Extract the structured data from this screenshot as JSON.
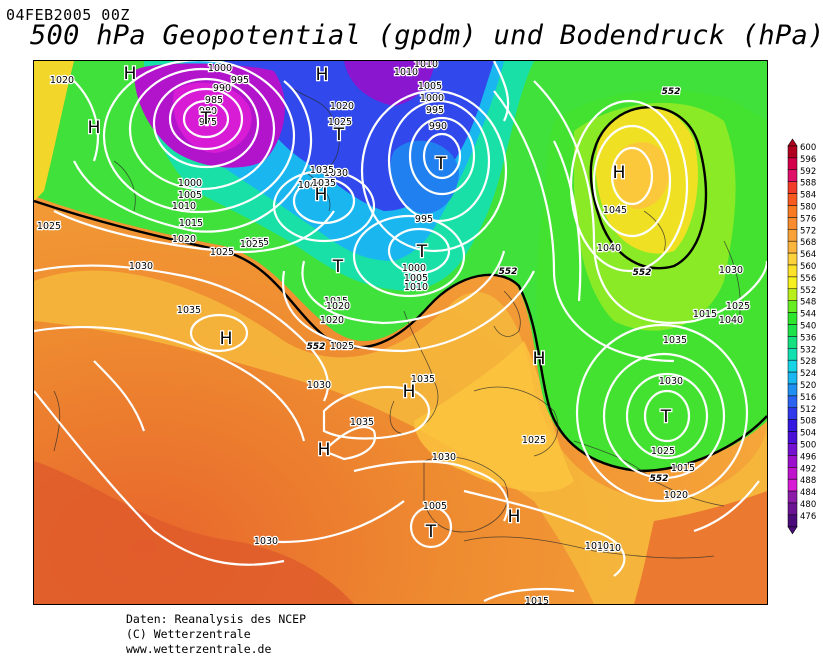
{
  "header": {
    "date": "04FEB2005 00Z",
    "title": "500 hPa Geopotential (gpdm) und Bodendruck (hPa)"
  },
  "credits": {
    "line1": "Daten: Reanalysis des NCEP",
    "line2": "(C) Wetterzentrale",
    "line3": "www.wetterzentrale.de"
  },
  "legend": {
    "values": [
      "600",
      "596",
      "592",
      "588",
      "584",
      "580",
      "576",
      "572",
      "568",
      "564",
      "560",
      "556",
      "552",
      "548",
      "544",
      "540",
      "536",
      "532",
      "528",
      "524",
      "520",
      "516",
      "512",
      "508",
      "504",
      "500",
      "496",
      "492",
      "488",
      "484",
      "480",
      "476"
    ],
    "colors": [
      "#b00020",
      "#d4004a",
      "#e0106a",
      "#f03c28",
      "#f85a20",
      "#f97a22",
      "#f98c2c",
      "#f9a23a",
      "#fbb43c",
      "#fdd23c",
      "#fee22a",
      "#f6f01e",
      "#b8ee1a",
      "#66ee22",
      "#2ee62e",
      "#1ee24a",
      "#14e080",
      "#12e0b0",
      "#14d4e6",
      "#1ab8f2",
      "#2090f2",
      "#2a62f2",
      "#3038ec",
      "#3418e0",
      "#4a10d8",
      "#7410d0",
      "#9a10cc",
      "#be14cc",
      "#d81cd6",
      "#8c1caa",
      "#6a1494",
      "#4a0c7a"
    ]
  },
  "map": {
    "pressure_centers": [
      {
        "type": "H",
        "label": "H"
      },
      {
        "type": "H",
        "label": "H"
      },
      {
        "type": "H",
        "label": "H"
      },
      {
        "type": "H",
        "label": "H"
      },
      {
        "type": "H",
        "label": "H"
      },
      {
        "type": "H",
        "label": "H"
      },
      {
        "type": "H",
        "label": "H"
      },
      {
        "type": "H",
        "label": "H"
      },
      {
        "type": "H",
        "label": "H"
      },
      {
        "type": "H",
        "label": "H"
      },
      {
        "type": "T",
        "label": "T"
      },
      {
        "type": "T",
        "label": "T"
      },
      {
        "type": "T",
        "label": "T"
      },
      {
        "type": "T",
        "label": "T"
      },
      {
        "type": "T",
        "label": "T"
      },
      {
        "type": "T",
        "label": "T"
      },
      {
        "type": "T",
        "label": "T"
      }
    ],
    "isobar_labels": [
      "1020",
      "1000",
      "995",
      "990",
      "985",
      "980",
      "975",
      "1010",
      "1010",
      "1005",
      "1000",
      "995",
      "990",
      "1020",
      "1025",
      "1030",
      "1040",
      "1045",
      "1035",
      "1035",
      "1000",
      "1005",
      "1010",
      "1015",
      "1020",
      "1025",
      "1040",
      "1025",
      "995",
      "1000",
      "1005",
      "1010",
      "1025",
      "1030",
      "1035",
      "1015",
      "1020",
      "1025",
      "1030",
      "1035",
      "1035",
      "1030",
      "1030",
      "1025",
      "1030",
      "1025",
      "1015",
      "1040",
      "1035",
      "1030",
      "1025",
      "1015",
      "1020",
      "1010",
      "1005",
      "1010",
      "1015",
      "1020",
      "1025"
    ],
    "contour_labels": [
      "552",
      "552",
      "552",
      "552",
      "552"
    ]
  }
}
